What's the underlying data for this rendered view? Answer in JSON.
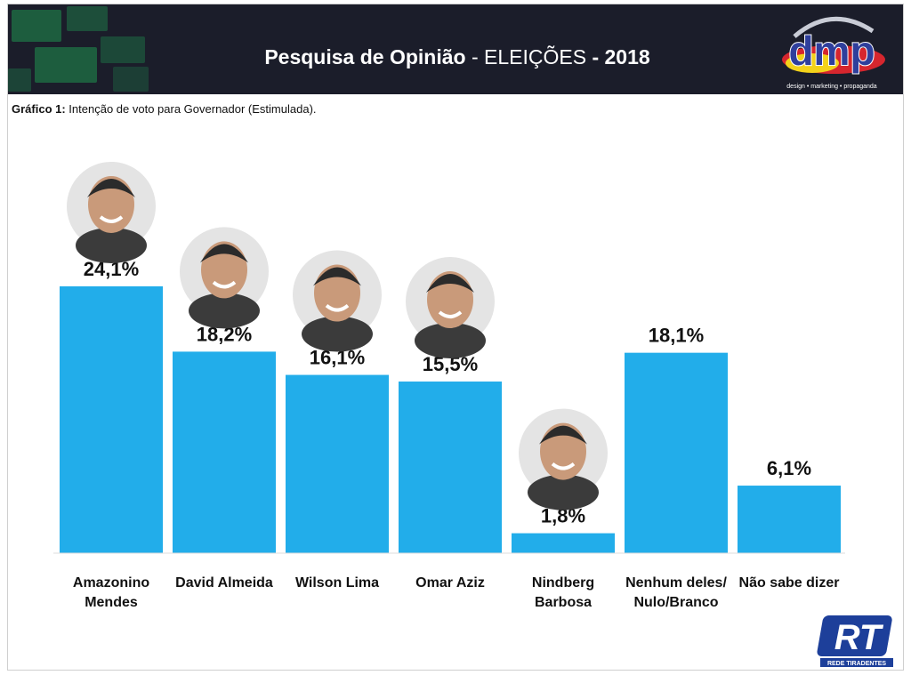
{
  "header": {
    "title_part1": "Pesquisa de Opinião",
    "title_part2": " - ELEIÇÕES ",
    "title_part3": "- 2018",
    "logo_text": "dmp",
    "logo_tagline": "design • marketing • propaganda"
  },
  "subtitle": {
    "label": "Gráfico 1:",
    "text": " Intenção de voto para Governador (Estimulada)."
  },
  "footer_logo": {
    "text": "RT",
    "caption": "REDE TIRADENTES"
  },
  "colors": {
    "bar": "#22adea",
    "header_bg": "#1b1d2a",
    "text": "#111111"
  },
  "chart_data": {
    "type": "bar",
    "title": "",
    "categories": [
      [
        "Amazonino",
        "Mendes"
      ],
      [
        "David Almeida"
      ],
      [
        "Wilson Lima"
      ],
      [
        "Omar Aziz"
      ],
      [
        "Nindberg",
        "Barbosa"
      ],
      [
        "Nenhum deles/",
        "Nulo/Branco"
      ],
      [
        "Não sabe dizer"
      ]
    ],
    "values": [
      24.1,
      18.2,
      16.1,
      15.5,
      1.8,
      18.1,
      6.1
    ],
    "value_labels": [
      "24,1%",
      "18,2%",
      "16,1%",
      "15,5%",
      "1,8%",
      "18,1%",
      "6,1%"
    ],
    "has_photo": [
      true,
      true,
      true,
      true,
      true,
      false,
      false
    ],
    "photo_icons": [
      "amazonino-photo",
      "david-photo",
      "wilson-photo",
      "omar-photo",
      "nindberg-photo"
    ],
    "ylim": [
      0,
      25
    ],
    "grid": false,
    "legend": "none"
  }
}
